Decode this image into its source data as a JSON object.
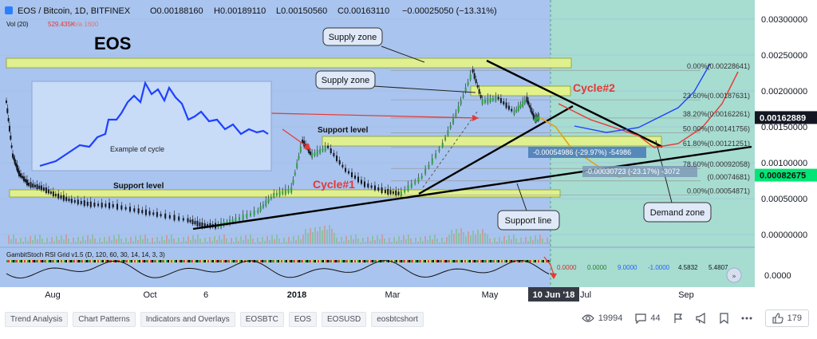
{
  "header": {
    "title": "EOS / Bitcoin, 1D, BITFINEX",
    "open": "O0.00188160",
    "high": "H0.00189110",
    "low": "L0.00150560",
    "close": "C0.00163110",
    "change": "−0.00025050 (−13.31%)",
    "vol_label": "Vol (20)",
    "vol_value": "529.435K",
    "vol_value2": "n/a 1600"
  },
  "watermark": "EOS",
  "chart_data": {
    "type": "line",
    "symbol": "EOS / Bitcoin",
    "interval": "1D",
    "exchange": "BITFINEX",
    "price_axis": {
      "ticks": [
        "0.00300000",
        "0.00250000",
        "0.00200000",
        "0.00150000",
        "0.00100000",
        "0.00050000",
        "0.00000000"
      ],
      "range": [
        0,
        0.0032
      ]
    },
    "time_axis": {
      "ticks": [
        "Aug",
        "Oct",
        "6",
        "2018",
        "Mar",
        "May",
        "10 Jun '18",
        "Jul",
        "Sep"
      ]
    },
    "series": [
      {
        "name": "EOSBTC",
        "points": [
          [
            "2017-07-10",
            0.00185
          ],
          [
            "2017-07-14",
            0.0011
          ],
          [
            "2017-07-18",
            0.00085
          ],
          [
            "2017-07-24",
            0.0007
          ],
          [
            "2017-08-01",
            0.00065
          ],
          [
            "2017-08-10",
            0.00055
          ],
          [
            "2017-08-20",
            0.00047
          ],
          [
            "2017-09-01",
            0.00042
          ],
          [
            "2017-09-15",
            0.0004
          ],
          [
            "2017-10-01",
            0.00033
          ],
          [
            "2017-10-15",
            0.00027
          ],
          [
            "2017-11-01",
            0.0002
          ],
          [
            "2017-11-10",
            0.00013
          ],
          [
            "2017-11-20",
            0.00012
          ],
          [
            "2017-12-01",
            0.0002
          ],
          [
            "2017-12-15",
            0.00032
          ],
          [
            "2017-12-25",
            0.00055
          ],
          [
            "2018-01-05",
            0.00062
          ],
          [
            "2018-01-12",
            0.0013
          ],
          [
            "2018-01-18",
            0.0011
          ],
          [
            "2018-01-28",
            0.00122
          ],
          [
            "2018-02-08",
            0.0009
          ],
          [
            "2018-02-20",
            0.0007
          ],
          [
            "2018-03-05",
            0.0006
          ],
          [
            "2018-03-15",
            0.00057
          ],
          [
            "2018-03-28",
            0.0008
          ],
          [
            "2018-04-10",
            0.00125
          ],
          [
            "2018-04-20",
            0.00175
          ],
          [
            "2018-04-29",
            0.00228
          ],
          [
            "2018-05-05",
            0.00185
          ],
          [
            "2018-05-15",
            0.0019
          ],
          [
            "2018-05-25",
            0.0017
          ],
          [
            "2018-06-02",
            0.00188
          ],
          [
            "2018-06-07",
            0.0016
          ],
          [
            "2018-06-10",
            0.00163
          ]
        ]
      }
    ],
    "projection": {
      "name": "Cycle#2 projection",
      "points": [
        [
          "2018-06-10",
          0.00163
        ],
        [
          "2018-06-20",
          0.0015
        ],
        [
          "2018-06-30",
          0.0012
        ],
        [
          "2018-07-10",
          0.00105
        ],
        [
          "2018-07-20",
          0.0009
        ],
        [
          "2018-07-30",
          0.0008
        ],
        [
          "2018-08-10",
          0.00085
        ]
      ]
    },
    "fibonacci": [
      {
        "level": "0.00%",
        "price": "0.00228641"
      },
      {
        "level": "23.60%",
        "price": "0.00187631"
      },
      {
        "level": "38.20%",
        "price": "0.00162261"
      },
      {
        "level": "50.00%",
        "price": "0.00141756"
      },
      {
        "level": "61.80%",
        "price": "0.00121251"
      },
      {
        "level": "78.60%",
        "price": "0.00092058"
      },
      {
        "level": "",
        "price": "0.00074681"
      },
      {
        "level": "0.00%",
        "price": "0.00054871"
      }
    ],
    "price_labels": [
      {
        "value": "0.00162889",
        "color": "#131722"
      },
      {
        "value": "0.00082675",
        "color": "#00e676"
      }
    ],
    "measure_labels": [
      {
        "text": "-0.00054986 (-29.97%) -54986"
      },
      {
        "text": "-0.00030723 (-23.17%) -3072"
      }
    ],
    "annotations": {
      "callouts": [
        "Supply zone",
        "Supply zone",
        "Support line",
        "Demand zone"
      ],
      "texts": [
        "Support level",
        "Support level",
        "Cycle#1",
        "Cycle#2",
        "Example of cycle"
      ]
    },
    "indicator": {
      "label": "GambitStoch RSI Grid v1.5 (D, 120, 60, 30, 14, 14, 3, 3)",
      "values": [
        {
          "text": "0.0000",
          "color": "#d32f2f"
        },
        {
          "text": "0.0000",
          "color": "#2e7d32"
        },
        {
          "text": "9.0000",
          "color": "#2962ff"
        },
        {
          "text": "-1.0000",
          "color": "#2962ff"
        },
        {
          "text": "4.5832",
          "color": "#131722"
        },
        {
          "text": "5.4807",
          "color": "#131722"
        }
      ],
      "axis_tick": "0.0000"
    }
  },
  "tags": [
    "Trend Analysis",
    "Chart Patterns",
    "Indicators and Overlays",
    "EOSBTC",
    "EOS",
    "EOSUSD",
    "eosbtcshort"
  ],
  "stats": {
    "views": "19994",
    "comments": "44",
    "likes": "179"
  },
  "colors": {
    "background": "#a9c4ee",
    "forecast_bg": "#a7dcd1",
    "zone_fill": "#e3f28b",
    "candle_up": "#2ea043",
    "candle_down": "#131722",
    "projection": "#e53935",
    "blue_path": "#1e40ff"
  }
}
